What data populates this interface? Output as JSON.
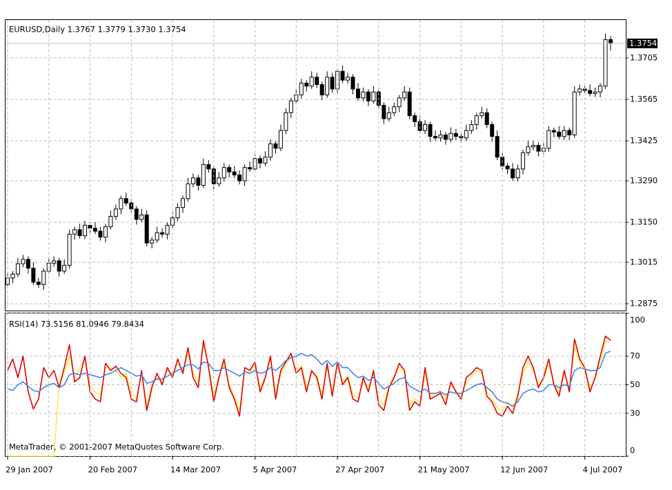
{
  "chart_data": [
    {
      "type": "candlestick",
      "title": "EURUSD,Daily  1.3767 1.3779 1.3730 1.3754",
      "color": "#000000",
      "up_color": "#ffffff",
      "down_color": "#000000",
      "last_line_color": "#c0c0c0",
      "open": [
        1.294,
        1.2962,
        1.2975,
        1.301,
        1.3025,
        1.2995,
        1.2948,
        1.294,
        1.2985,
        1.3012,
        1.302,
        1.2985,
        1.3005,
        1.311,
        1.3125,
        1.3105,
        1.314,
        1.313,
        1.312,
        1.31,
        1.3135,
        1.317,
        1.3195,
        1.323,
        1.3215,
        1.3195,
        1.316,
        1.3175,
        1.308,
        1.309,
        1.3115,
        1.311,
        1.314,
        1.3165,
        1.32,
        1.323,
        1.328,
        1.33,
        1.3275,
        1.3345,
        1.333,
        1.328,
        1.33,
        1.3335,
        1.332,
        1.331,
        1.329,
        1.3335,
        1.333,
        1.3365,
        1.335,
        1.337,
        1.3415,
        1.34,
        1.346,
        1.352,
        1.356,
        1.358,
        1.362,
        1.361,
        1.364,
        1.3615,
        1.358,
        1.364,
        1.36,
        1.366,
        1.363,
        1.364,
        1.36,
        1.357,
        1.359,
        1.356,
        1.359,
        1.3545,
        1.35,
        1.352,
        1.354,
        1.357,
        1.359,
        1.351,
        1.349,
        1.346,
        1.348,
        1.344,
        1.3435,
        1.3445,
        1.343,
        1.345,
        1.344,
        1.3435,
        1.346,
        1.348,
        1.351,
        1.352,
        1.348,
        1.344,
        1.337,
        1.334,
        1.333,
        1.33,
        1.333,
        1.3385,
        1.3405,
        1.341,
        1.339,
        1.34,
        1.346,
        1.3455,
        1.344,
        1.346,
        1.3445,
        1.359,
        1.36,
        1.3595,
        1.3585,
        1.359,
        1.361,
        1.3767
      ],
      "high": [
        1.2977,
        1.2985,
        1.303,
        1.304,
        1.3035,
        1.3015,
        1.2963,
        1.2995,
        1.3032,
        1.3035,
        1.303,
        1.3025,
        1.3125,
        1.3135,
        1.3145,
        1.3155,
        1.315,
        1.315,
        1.3135,
        1.3145,
        1.319,
        1.321,
        1.324,
        1.325,
        1.323,
        1.3205,
        1.3195,
        1.319,
        1.31,
        1.3135,
        1.313,
        1.315,
        1.3185,
        1.3215,
        1.324,
        1.33,
        1.3315,
        1.331,
        1.3365,
        1.336,
        1.334,
        1.332,
        1.335,
        1.3345,
        1.334,
        1.3325,
        1.3345,
        1.3355,
        1.338,
        1.3375,
        1.339,
        1.343,
        1.3425,
        1.348,
        1.3535,
        1.357,
        1.36,
        1.3635,
        1.363,
        1.366,
        1.3655,
        1.3625,
        1.366,
        1.3655,
        1.367,
        1.368,
        1.3655,
        1.365,
        1.362,
        1.3605,
        1.36,
        1.361,
        1.3605,
        1.3555,
        1.354,
        1.3555,
        1.358,
        1.361,
        1.3605,
        1.352,
        1.351,
        1.3495,
        1.349,
        1.346,
        1.346,
        1.3455,
        1.347,
        1.3465,
        1.345,
        1.348,
        1.3495,
        1.352,
        1.354,
        1.3535,
        1.349,
        1.346,
        1.3385,
        1.335,
        1.335,
        1.3345,
        1.3395,
        1.3425,
        1.3425,
        1.342,
        1.342,
        1.3475,
        1.347,
        1.3475,
        1.3475,
        1.347,
        1.361,
        1.3615,
        1.361,
        1.3615,
        1.3605,
        1.362,
        1.3787,
        1.3779
      ],
      "low": [
        1.2928,
        1.2944,
        1.2965,
        1.2998,
        1.2977,
        1.2938,
        1.2928,
        1.2922,
        1.2975,
        1.3,
        1.2967,
        1.2975,
        1.2993,
        1.3092,
        1.3095,
        1.3093,
        1.3112,
        1.311,
        1.3088,
        1.3082,
        1.3125,
        1.3158,
        1.3177,
        1.3205,
        1.3183,
        1.3142,
        1.315,
        1.3068,
        1.3062,
        1.308,
        1.3098,
        1.3092,
        1.313,
        1.3153,
        1.3182,
        1.322,
        1.3268,
        1.3257,
        1.3265,
        1.3318,
        1.3262,
        1.327,
        1.3288,
        1.3302,
        1.33,
        1.3278,
        1.3272,
        1.332,
        1.3318,
        1.3332,
        1.334,
        1.3358,
        1.3382,
        1.339,
        1.3448,
        1.3502,
        1.355,
        1.3568,
        1.3592,
        1.36,
        1.3603,
        1.3562,
        1.357,
        1.3588,
        1.3582,
        1.362,
        1.3618,
        1.3582,
        1.356,
        1.3558,
        1.3542,
        1.355,
        1.3533,
        1.3482,
        1.349,
        1.3508,
        1.3522,
        1.356,
        1.3498,
        1.3472,
        1.345,
        1.3448,
        1.3422,
        1.3425,
        1.3423,
        1.3412,
        1.342,
        1.3428,
        1.3417,
        1.3425,
        1.3448,
        1.3462,
        1.35,
        1.3468,
        1.3422,
        1.336,
        1.3328,
        1.3312,
        1.329,
        1.3288,
        1.3312,
        1.3375,
        1.3393,
        1.3372,
        1.338,
        1.3388,
        1.3437,
        1.343,
        1.3428,
        1.3427,
        1.3435,
        1.3578,
        1.3582,
        1.3575,
        1.3573,
        1.3572,
        1.36,
        1.373
      ],
      "close": [
        1.2962,
        1.2975,
        1.301,
        1.3025,
        1.2995,
        1.2948,
        1.294,
        1.2985,
        1.3012,
        1.302,
        1.2985,
        1.3005,
        1.311,
        1.3125,
        1.3105,
        1.314,
        1.313,
        1.312,
        1.31,
        1.3135,
        1.317,
        1.3195,
        1.323,
        1.3215,
        1.3195,
        1.316,
        1.3175,
        1.308,
        1.309,
        1.3115,
        1.311,
        1.314,
        1.3165,
        1.32,
        1.323,
        1.328,
        1.33,
        1.3275,
        1.3345,
        1.333,
        1.328,
        1.33,
        1.3335,
        1.332,
        1.331,
        1.329,
        1.3335,
        1.333,
        1.3365,
        1.335,
        1.337,
        1.3415,
        1.34,
        1.346,
        1.352,
        1.356,
        1.358,
        1.362,
        1.361,
        1.364,
        1.3615,
        1.358,
        1.364,
        1.36,
        1.366,
        1.363,
        1.364,
        1.36,
        1.357,
        1.359,
        1.356,
        1.359,
        1.3545,
        1.35,
        1.352,
        1.354,
        1.357,
        1.359,
        1.351,
        1.349,
        1.346,
        1.348,
        1.344,
        1.3435,
        1.3445,
        1.343,
        1.345,
        1.344,
        1.3435,
        1.346,
        1.348,
        1.351,
        1.352,
        1.348,
        1.344,
        1.337,
        1.334,
        1.333,
        1.33,
        1.333,
        1.3385,
        1.3405,
        1.341,
        1.339,
        1.34,
        1.346,
        1.3455,
        1.344,
        1.346,
        1.3445,
        1.359,
        1.36,
        1.3595,
        1.3585,
        1.359,
        1.361,
        1.3767,
        1.3754
      ],
      "ylim": [
        1.2852,
        1.3833
      ],
      "yticks": [
        1.2875,
        1.3015,
        {
          "value": 1.315,
          "label": "1.3150"
        },
        {
          "value": 1.329,
          "label": "1.3290"
        },
        1.3425,
        1.3565,
        1.3705
      ],
      "grid": true
    },
    {
      "type": "line",
      "title": "RSI(14) 73.5156 81.0946 79.8434",
      "watermark": "MetaTrader, © 2001-2007 MetaQuotes Software Corp.",
      "categories": [
        "29 Jan 2007",
        null,
        null,
        null,
        null,
        null,
        null,
        null,
        null,
        null,
        null,
        null,
        null,
        null,
        null,
        null,
        "20 Feb 2007",
        null,
        null,
        null,
        null,
        null,
        null,
        null,
        null,
        null,
        null,
        null,
        null,
        null,
        null,
        null,
        "14 Mar 2007",
        null,
        null,
        null,
        null,
        null,
        null,
        null,
        null,
        null,
        null,
        null,
        null,
        null,
        null,
        null,
        "5 Apr 2007",
        null,
        null,
        null,
        null,
        null,
        null,
        null,
        null,
        null,
        null,
        null,
        null,
        null,
        null,
        null,
        "27 Apr 2007",
        null,
        null,
        null,
        null,
        null,
        null,
        null,
        null,
        null,
        null,
        null,
        null,
        null,
        null,
        null,
        "21 May 2007",
        null,
        null,
        null,
        null,
        null,
        null,
        null,
        null,
        null,
        null,
        null,
        null,
        null,
        null,
        null,
        "12 Jun 2007",
        null,
        null,
        null,
        null,
        null,
        null,
        null,
        null,
        null,
        null,
        null,
        null,
        null,
        null,
        null,
        "4 Jul 2007",
        null,
        null,
        null,
        null,
        null
      ],
      "series": [
        {
          "color": "#3d86f0",
          "values": [
            47,
            46,
            50,
            52,
            49,
            46,
            45,
            48,
            50,
            51,
            48,
            50,
            57,
            58,
            57,
            58,
            57,
            56,
            55,
            57,
            58,
            60,
            62,
            60,
            58,
            56,
            57,
            51,
            52,
            54,
            54,
            56,
            58,
            60,
            62,
            64,
            64,
            61,
            66,
            65,
            60,
            60,
            62,
            60,
            58,
            56,
            59,
            58,
            60,
            58,
            59,
            62,
            60,
            63,
            67,
            69,
            70,
            72,
            70,
            71,
            68,
            64,
            67,
            63,
            66,
            62,
            62,
            58,
            55,
            56,
            53,
            55,
            51,
            47,
            49,
            51,
            54,
            55,
            49,
            47,
            45,
            47,
            44,
            44,
            45,
            43,
            45,
            44,
            44,
            46,
            48,
            50,
            51,
            48,
            45,
            40,
            38,
            37,
            35,
            38,
            44,
            46,
            47,
            45,
            46,
            50,
            50,
            48,
            50,
            49,
            60,
            62,
            61,
            60,
            60,
            62,
            72,
            73.5156
          ]
        },
        {
          "color": "#e00000",
          "values": [
            60,
            68,
            55,
            70,
            45,
            33,
            40,
            62,
            55,
            60,
            48,
            62,
            78,
            52,
            55,
            70,
            45,
            40,
            38,
            65,
            60,
            63,
            58,
            55,
            40,
            38,
            60,
            32,
            48,
            58,
            50,
            62,
            55,
            68,
            58,
            76,
            55,
            48,
            81,
            62,
            38,
            55,
            68,
            48,
            40,
            28,
            62,
            60,
            66,
            45,
            55,
            70,
            40,
            60,
            66,
            72,
            58,
            62,
            45,
            60,
            55,
            40,
            65,
            42,
            66,
            50,
            55,
            40,
            38,
            55,
            45,
            60,
            36,
            32,
            48,
            55,
            65,
            60,
            32,
            38,
            35,
            62,
            40,
            42,
            44,
            36,
            52,
            45,
            40,
            55,
            58,
            62,
            60,
            42,
            38,
            30,
            28,
            35,
            30,
            42,
            62,
            70,
            62,
            48,
            55,
            68,
            50,
            42,
            60,
            45,
            82,
            68,
            62,
            45,
            55,
            70,
            84,
            81.0946
          ]
        },
        {
          "color": "#ffe84a",
          "values": [
            0,
            0,
            0,
            0,
            0,
            0,
            0,
            0,
            0,
            0,
            50,
            58,
            70,
            55,
            62,
            68,
            50,
            45,
            42,
            62,
            62,
            60,
            55,
            58,
            45,
            40,
            58,
            35,
            50,
            55,
            52,
            60,
            58,
            65,
            60,
            72,
            58,
            52,
            78,
            64,
            42,
            56,
            65,
            50,
            42,
            32,
            60,
            58,
            64,
            48,
            56,
            68,
            44,
            58,
            64,
            70,
            60,
            64,
            48,
            58,
            57,
            44,
            62,
            46,
            64,
            52,
            56,
            44,
            40,
            52,
            48,
            58,
            40,
            36,
            50,
            56,
            62,
            58,
            36,
            40,
            38,
            58,
            42,
            44,
            46,
            40,
            50,
            46,
            42,
            52,
            56,
            60,
            58,
            45,
            40,
            34,
            32,
            38,
            34,
            44,
            58,
            66,
            60,
            50,
            54,
            64,
            52,
            45,
            58,
            48,
            76,
            66,
            60,
            48,
            54,
            66,
            80,
            79.8434
          ]
        }
      ],
      "ylim": [
        0,
        100
      ],
      "yticks": [
        0,
        30,
        50,
        70,
        100
      ],
      "grid": true
    }
  ]
}
